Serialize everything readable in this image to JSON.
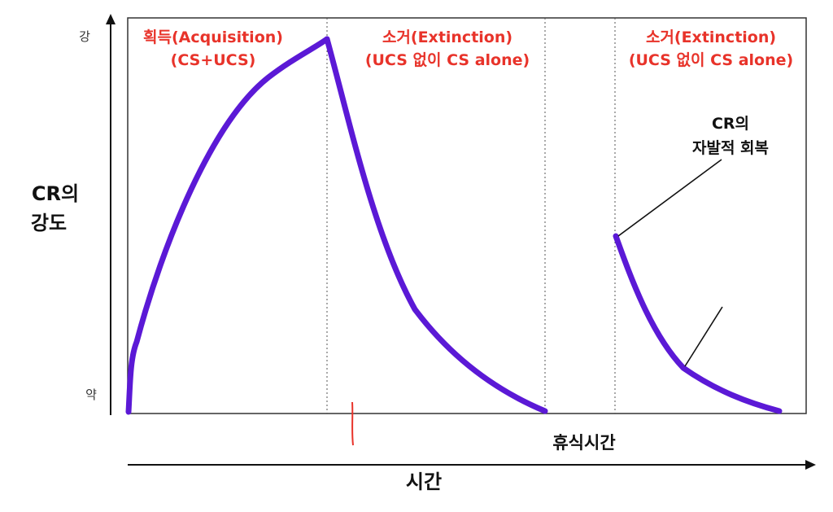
{
  "axis": {
    "y_title_line1": "CR의",
    "y_title_line2": "강도",
    "y_top_tick": "강",
    "y_bottom_tick": "약",
    "x_title": "시간",
    "rest_label": "휴식시간"
  },
  "phases": {
    "acquisition_line1": "획득(Acquisition)",
    "acquisition_line2": "(CS+UCS)",
    "extinction1_line1": "소거(Extinction)",
    "extinction1_line2": "(UCS 없이 CS alone)",
    "extinction2_line1": "소거(Extinction)",
    "extinction2_line2": "(UCS 없이 CS alone)"
  },
  "callout": {
    "line1": "CR의",
    "line2": "자발적 회복"
  },
  "colors": {
    "curve": "#5b19d6",
    "phase_text": "#e8332a",
    "frame": "#333333"
  }
}
